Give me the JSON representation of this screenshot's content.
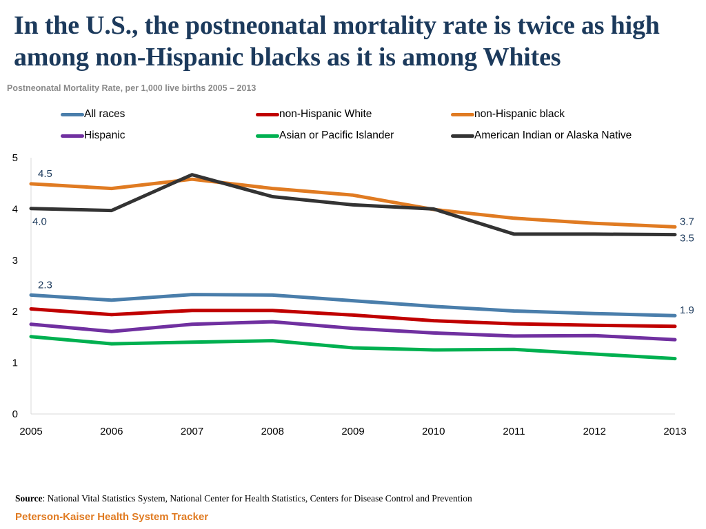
{
  "page": {
    "title": "In the U.S., the postneonatal mortality rate is twice as high among non-Hispanic blacks as it is among Whites",
    "subtitle": "Postneonatal Mortality Rate, per 1,000 live births 2005 – 2013",
    "source_label": "Source",
    "source_text": ": National Vital Statistics System, National Center for Health Statistics, Centers for Disease Control and Prevention",
    "brand": "Peterson-Kaiser Health System Tracker"
  },
  "chart_data": {
    "type": "line",
    "title": "Postneonatal Mortality Rate, per 1,000 live births 2005 – 2013",
    "xlabel": "",
    "ylabel": "",
    "categories": [
      "2005",
      "2006",
      "2007",
      "2008",
      "2009",
      "2010",
      "2011",
      "2012",
      "2013"
    ],
    "ylim": [
      0,
      5
    ],
    "yticks": [
      "0",
      "1",
      "2",
      "3",
      "4",
      "5"
    ],
    "grid": false,
    "legend_position": "top",
    "series": [
      {
        "name": "All races",
        "color": "#4a7eab",
        "values": [
          2.32,
          2.22,
          2.33,
          2.32,
          2.21,
          2.1,
          2.01,
          1.96,
          1.92
        ]
      },
      {
        "name": "non-Hispanic White",
        "color": "#c00000",
        "values": [
          2.05,
          1.94,
          2.02,
          2.02,
          1.93,
          1.82,
          1.76,
          1.73,
          1.71
        ]
      },
      {
        "name": "non-Hispanic black",
        "color": "#e07b22",
        "values": [
          4.49,
          4.4,
          4.58,
          4.4,
          4.27,
          3.99,
          3.82,
          3.72,
          3.65
        ]
      },
      {
        "name": "Hispanic",
        "color": "#7030a0",
        "values": [
          1.75,
          1.61,
          1.75,
          1.8,
          1.67,
          1.58,
          1.52,
          1.53,
          1.45
        ]
      },
      {
        "name": "Asian or Pacific Islander",
        "color": "#00b050",
        "values": [
          1.51,
          1.37,
          1.4,
          1.43,
          1.29,
          1.25,
          1.26,
          1.17,
          1.08
        ]
      },
      {
        "name": "American Indian or Alaska Native",
        "color": "#333333",
        "values": [
          4.01,
          3.97,
          4.67,
          4.24,
          4.08,
          4.0,
          3.51,
          3.51,
          3.5
        ]
      }
    ],
    "data_labels": [
      {
        "series": "non-Hispanic black",
        "category": "2005",
        "text": "4.5",
        "position": "above"
      },
      {
        "series": "American Indian or Alaska Native",
        "category": "2005",
        "text": "4.0",
        "position": "below"
      },
      {
        "series": "All races",
        "category": "2005",
        "text": "2.3",
        "position": "above"
      },
      {
        "series": "non-Hispanic black",
        "category": "2013",
        "text": "3.7",
        "position": "right"
      },
      {
        "series": "American Indian or Alaska Native",
        "category": "2013",
        "text": "3.5",
        "position": "right-below"
      },
      {
        "series": "All races",
        "category": "2013",
        "text": "1.9",
        "position": "right"
      }
    ]
  }
}
